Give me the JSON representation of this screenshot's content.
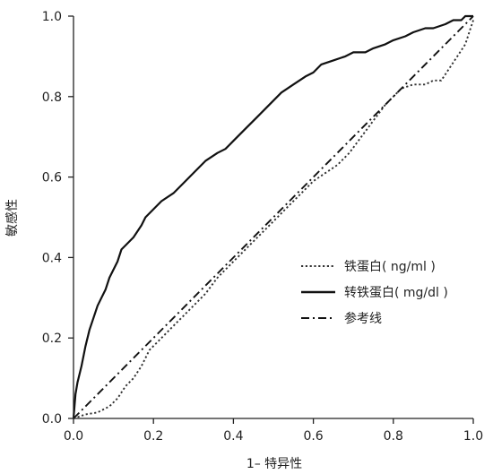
{
  "chart_data": {
    "type": "line",
    "title": "",
    "xlabel": "1– 特异性",
    "ylabel": "敏感性",
    "xlim": [
      0,
      1
    ],
    "ylim": [
      0,
      1
    ],
    "xticks": [
      "0.0",
      "0.2",
      "0.4",
      "0.6",
      "0.8",
      "1.0"
    ],
    "yticks": [
      "0.0",
      "0.2",
      "0.4",
      "0.6",
      "0.8",
      "1.0"
    ],
    "grid": false,
    "legend_position": "lower-right",
    "series": [
      {
        "name": "铁蛋白( ng/ml )",
        "style": "dotted",
        "color": "#333333",
        "x": [
          0,
          0.03,
          0.06,
          0.09,
          0.11,
          0.13,
          0.15,
          0.17,
          0.19,
          0.21,
          0.23,
          0.25,
          0.27,
          0.3,
          0.33,
          0.36,
          0.39,
          0.42,
          0.45,
          0.48,
          0.51,
          0.54,
          0.57,
          0.6,
          0.63,
          0.66,
          0.69,
          0.72,
          0.75,
          0.78,
          0.8,
          0.82,
          0.85,
          0.88,
          0.9,
          0.92,
          0.94,
          0.96,
          0.98,
          0.99,
          1.0
        ],
        "y": [
          0,
          0.01,
          0.015,
          0.03,
          0.05,
          0.08,
          0.1,
          0.13,
          0.17,
          0.19,
          0.21,
          0.23,
          0.25,
          0.28,
          0.31,
          0.35,
          0.38,
          0.41,
          0.44,
          0.47,
          0.5,
          0.53,
          0.56,
          0.59,
          0.61,
          0.63,
          0.66,
          0.7,
          0.74,
          0.78,
          0.8,
          0.82,
          0.83,
          0.83,
          0.84,
          0.84,
          0.87,
          0.9,
          0.93,
          0.96,
          0.99
        ]
      },
      {
        "name": "转铁蛋白( mg/dl )",
        "style": "solid",
        "color": "#111111",
        "x": [
          0,
          0.005,
          0.01,
          0.02,
          0.03,
          0.04,
          0.05,
          0.06,
          0.07,
          0.08,
          0.09,
          0.1,
          0.11,
          0.12,
          0.13,
          0.15,
          0.17,
          0.18,
          0.2,
          0.22,
          0.25,
          0.28,
          0.3,
          0.33,
          0.36,
          0.38,
          0.4,
          0.43,
          0.46,
          0.48,
          0.5,
          0.52,
          0.55,
          0.58,
          0.6,
          0.62,
          0.65,
          0.68,
          0.7,
          0.73,
          0.75,
          0.78,
          0.8,
          0.83,
          0.85,
          0.88,
          0.9,
          0.93,
          0.95,
          0.97,
          0.98,
          0.99,
          1.0
        ],
        "y": [
          0,
          0.06,
          0.09,
          0.13,
          0.18,
          0.22,
          0.25,
          0.28,
          0.3,
          0.32,
          0.35,
          0.37,
          0.39,
          0.42,
          0.43,
          0.45,
          0.48,
          0.5,
          0.52,
          0.54,
          0.56,
          0.59,
          0.61,
          0.64,
          0.66,
          0.67,
          0.69,
          0.72,
          0.75,
          0.77,
          0.79,
          0.81,
          0.83,
          0.85,
          0.86,
          0.88,
          0.89,
          0.9,
          0.91,
          0.91,
          0.92,
          0.93,
          0.94,
          0.95,
          0.96,
          0.97,
          0.97,
          0.98,
          0.99,
          0.99,
          1.0,
          1.0,
          1.0
        ]
      },
      {
        "name": "参考线",
        "style": "dashdot",
        "color": "#111111",
        "x": [
          0,
          1
        ],
        "y": [
          0,
          1
        ]
      }
    ]
  }
}
